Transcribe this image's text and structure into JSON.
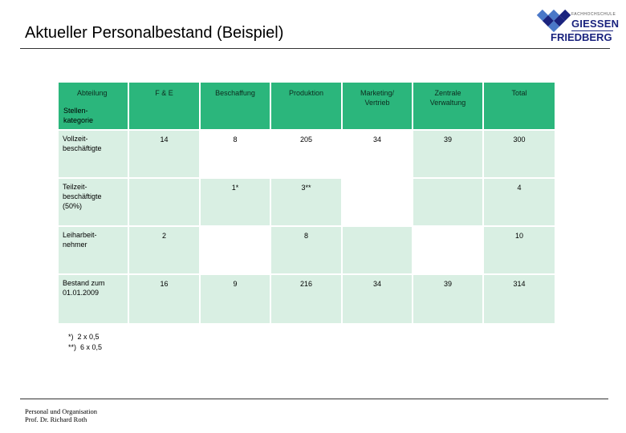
{
  "slide": {
    "title": "Aktueller Personalbestand (Beispiel)",
    "logo": {
      "tagline": "FACHHOCHSCHULE",
      "line1": "GIESSEN",
      "line2": "FRIEDBERG"
    }
  },
  "table": {
    "corner_top": "Abteilung",
    "corner_bottom": "Stellen-\nkategorie",
    "columns": [
      "F & E",
      "Beschaffung",
      "Produktion",
      "Marketing/\nVertrieb",
      "Zentrale\nVerwaltung",
      "Total"
    ],
    "rows": [
      {
        "label": "Vollzeit-\nbeschäftigte",
        "cells": [
          "14",
          "8",
          "205",
          "34",
          "39",
          "300"
        ]
      },
      {
        "label": "Teilzeit-\nbeschäftigte\n(50%)",
        "cells": [
          "",
          "1*",
          "3**",
          "",
          "",
          "4"
        ]
      },
      {
        "label": "Leiharbeit-\nnehmer",
        "cells": [
          "2",
          "",
          "8",
          "",
          "",
          "10"
        ]
      },
      {
        "label": "Bestand zum\n01.01.2009",
        "cells": [
          "16",
          "9",
          "216",
          "34",
          "39",
          "314"
        ]
      }
    ]
  },
  "notes": [
    "*)  2 x 0,5",
    "**)  6 x 0,5"
  ],
  "footer": {
    "line1": "Personal und Organisation",
    "line2": "Prof. Dr. Richard Roth"
  },
  "colors": {
    "header_green": "#2bb67c",
    "cell_light": "#d9efe3",
    "logo_blue": "#1a237e"
  }
}
